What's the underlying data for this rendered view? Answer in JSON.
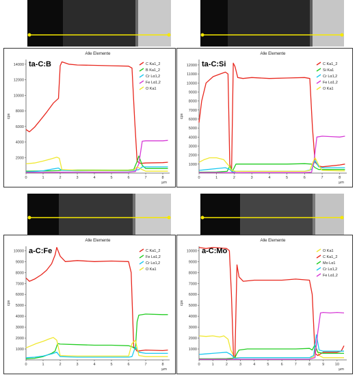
{
  "scan_line_color": "#f5e800",
  "chart_data": [
    {
      "type": "line",
      "title": "Alle Elemente",
      "label": "ta-C:B",
      "ylabel": "cps",
      "xunit": "µm",
      "xlim": [
        0,
        8.4
      ],
      "ylim": [
        0,
        14600
      ],
      "xticks": [
        0,
        1,
        2,
        3,
        4,
        5,
        6,
        7,
        8
      ],
      "yticks": [
        2000,
        4000,
        6000,
        8000,
        10000,
        12000,
        14000
      ],
      "legend_position": "top-right",
      "series": [
        {
          "name": "C Ka1_2",
          "color": "#e8261d",
          "x": [
            0,
            0.2,
            0.5,
            0.8,
            1.2,
            1.6,
            1.9,
            2.0,
            2.1,
            2.5,
            3.0,
            4.0,
            5.0,
            6.0,
            6.2,
            6.35,
            6.5,
            6.7,
            7.0,
            8.0,
            8.3
          ],
          "y": [
            5600,
            5300,
            5900,
            6700,
            7800,
            9000,
            9600,
            13800,
            14300,
            14000,
            13900,
            13850,
            13800,
            13750,
            13500,
            7000,
            1500,
            1250,
            1300,
            1350,
            1400
          ]
        },
        {
          "name": "B Ka1_2",
          "color": "#22cc22",
          "x": [
            0,
            0.5,
            1.0,
            1.5,
            1.9,
            2.1,
            3.0,
            4.0,
            5.0,
            6.0,
            6.3,
            6.5,
            6.6,
            6.8,
            7.0,
            8.0,
            8.3
          ],
          "y": [
            250,
            260,
            280,
            300,
            320,
            380,
            400,
            400,
            390,
            400,
            450,
            1500,
            2200,
            1000,
            600,
            600,
            600
          ]
        },
        {
          "name": "Cr Lα1,2",
          "color": "#19c8f0",
          "x": [
            0,
            0.5,
            1.0,
            1.5,
            1.9,
            2.1,
            3.0,
            4.0,
            5.0,
            6.0,
            6.3,
            6.6,
            6.8,
            7.0,
            8.0,
            8.3
          ],
          "y": [
            150,
            200,
            300,
            500,
            650,
            350,
            300,
            320,
            310,
            300,
            320,
            450,
            800,
            800,
            800,
            800
          ]
        },
        {
          "name": "Fe Lα1,2",
          "color": "#d63ad6",
          "x": [
            0,
            1.0,
            2.0,
            3.0,
            4.0,
            5.0,
            6.0,
            6.4,
            6.6,
            6.8,
            7.0,
            8.0,
            8.3
          ],
          "y": [
            100,
            100,
            110,
            120,
            110,
            120,
            130,
            200,
            1200,
            4100,
            4150,
            4150,
            4200
          ]
        },
        {
          "name": "O Ka1",
          "color": "#f0e830",
          "x": [
            0,
            0.5,
            1.0,
            1.5,
            1.8,
            1.95,
            2.1,
            3.0,
            4.0,
            5.0,
            6.0,
            6.3,
            6.5,
            6.8,
            7.0,
            8.0,
            8.3
          ],
          "y": [
            1200,
            1300,
            1550,
            1850,
            2050,
            1900,
            450,
            350,
            350,
            340,
            350,
            400,
            800,
            450,
            250,
            250,
            250
          ]
        }
      ]
    },
    {
      "type": "line",
      "title": "Alle Elemente",
      "label": "ta-C:Si",
      "ylabel": "cps",
      "xunit": "µm",
      "xlim": [
        0,
        8.4
      ],
      "ylim": [
        0,
        12600
      ],
      "xticks": [
        0,
        1,
        2,
        3,
        4,
        5,
        6,
        7,
        8
      ],
      "yticks": [
        1000,
        2000,
        3000,
        4000,
        5000,
        6000,
        7000,
        8000,
        9000,
        10000,
        11000,
        12000
      ],
      "legend_position": "top-right",
      "series": [
        {
          "name": "C Ka1_2",
          "color": "#e8261d",
          "x": [
            0,
            0.15,
            0.4,
            0.8,
            1.2,
            1.5,
            1.65,
            1.75,
            1.85,
            1.95,
            2.05,
            2.2,
            2.5,
            3.0,
            4.0,
            5.0,
            6.0,
            6.3,
            6.45,
            6.6,
            6.8,
            7.0,
            8.0,
            8.3
          ],
          "y": [
            5600,
            8000,
            10000,
            10700,
            11000,
            11200,
            11000,
            1000,
            200,
            12200,
            11800,
            10600,
            10500,
            10600,
            10500,
            10550,
            10600,
            10500,
            5000,
            1200,
            800,
            700,
            900,
            1000
          ]
        },
        {
          "name": "Si Ka1",
          "color": "#22cc22",
          "x": [
            0,
            1.0,
            1.6,
            1.75,
            1.9,
            2.1,
            3.0,
            4.0,
            5.0,
            6.0,
            6.4,
            6.6,
            6.8,
            7.0,
            8.0,
            8.3
          ],
          "y": [
            100,
            120,
            200,
            800,
            200,
            1000,
            1000,
            1000,
            1000,
            1050,
            1000,
            600,
            400,
            400,
            400,
            400
          ]
        },
        {
          "name": "Cr Lα1,2",
          "color": "#19c8f0",
          "x": [
            0,
            0.5,
            1.0,
            1.5,
            1.75,
            1.9,
            2.1,
            3.0,
            4.0,
            5.0,
            6.0,
            6.4,
            6.6,
            6.8,
            7.0,
            8.0,
            8.3
          ],
          "y": [
            300,
            400,
            500,
            600,
            400,
            100,
            200,
            200,
            200,
            200,
            200,
            400,
            1400,
            700,
            600,
            600,
            600
          ]
        },
        {
          "name": "Fe Lα1,2",
          "color": "#d63ad6",
          "x": [
            0,
            1.0,
            2.0,
            3.0,
            4.0,
            5.0,
            6.0,
            6.4,
            6.55,
            6.7,
            7.0,
            7.5,
            8.0,
            8.3
          ],
          "y": [
            50,
            50,
            50,
            60,
            60,
            60,
            60,
            100,
            1500,
            4000,
            4100,
            4050,
            4000,
            4100
          ]
        },
        {
          "name": "O Ka1",
          "color": "#f0e830",
          "x": [
            0,
            0.3,
            0.6,
            1.0,
            1.4,
            1.7,
            1.85,
            2.1,
            3.0,
            4.0,
            5.0,
            6.0,
            6.3,
            6.5,
            6.6,
            6.8,
            7.0,
            8.0,
            8.3
          ],
          "y": [
            1200,
            1500,
            1700,
            1700,
            1500,
            800,
            300,
            200,
            200,
            200,
            200,
            200,
            300,
            1300,
            1700,
            900,
            300,
            250,
            250
          ]
        }
      ]
    },
    {
      "type": "line",
      "title": "Alle Elemente",
      "label": "a-C:Fe",
      "ylabel": "cps",
      "xunit": "µm",
      "xlim": [
        0,
        8.4
      ],
      "ylim": [
        0,
        10400
      ],
      "xticks": [
        0,
        1,
        2,
        3,
        4,
        5,
        6,
        7,
        8
      ],
      "yticks": [
        1000,
        2000,
        3000,
        4000,
        5000,
        6000,
        7000,
        8000,
        9000,
        10000
      ],
      "legend_position": "top-right",
      "series": [
        {
          "name": "C Ka1_2",
          "color": "#e8261d",
          "x": [
            0,
            0.2,
            0.5,
            0.9,
            1.2,
            1.5,
            1.7,
            1.8,
            2.0,
            2.3,
            3.0,
            4.0,
            5.0,
            6.0,
            6.15,
            6.3,
            6.5,
            7.0,
            8.0,
            8.3
          ],
          "y": [
            7500,
            7200,
            7400,
            7800,
            8200,
            8800,
            9600,
            10300,
            9500,
            9000,
            9100,
            9000,
            9050,
            9000,
            8000,
            1200,
            800,
            900,
            850,
            900
          ]
        },
        {
          "name": "Fe Lα1,2",
          "color": "#22cc22",
          "x": [
            0,
            0.5,
            1.0,
            1.5,
            1.7,
            1.85,
            2.0,
            3.0,
            4.0,
            5.0,
            6.0,
            6.2,
            6.4,
            6.5,
            6.6,
            7.0,
            8.0,
            8.3
          ],
          "y": [
            100,
            150,
            300,
            600,
            800,
            1500,
            1450,
            1400,
            1350,
            1350,
            1300,
            1200,
            1000,
            3500,
            4100,
            4200,
            4150,
            4150
          ]
        },
        {
          "name": "Cr Lα1,2",
          "color": "#19c8f0",
          "x": [
            0,
            0.5,
            1.0,
            1.5,
            1.8,
            2.0,
            3.0,
            4.0,
            5.0,
            6.0,
            6.2,
            6.4,
            6.6,
            7.0,
            8.0,
            8.3
          ],
          "y": [
            200,
            250,
            350,
            550,
            700,
            300,
            250,
            250,
            250,
            250,
            300,
            1200,
            700,
            600,
            600,
            600
          ]
        },
        {
          "name": "O Ka1",
          "color": "#f0e830",
          "x": [
            0,
            0.3,
            0.6,
            1.0,
            1.4,
            1.6,
            1.8,
            2.0,
            3.0,
            4.0,
            5.0,
            6.0,
            6.2,
            6.4,
            6.6,
            7.0,
            8.0,
            8.3
          ],
          "y": [
            1100,
            1300,
            1500,
            1700,
            1950,
            2050,
            1800,
            400,
            350,
            350,
            350,
            350,
            1500,
            1800,
            400,
            300,
            300,
            300
          ]
        }
      ]
    },
    {
      "type": "line",
      "title": "Alle Elemente",
      "label": "a-C:Mo",
      "ylabel": "cps",
      "xunit": "µm",
      "xlim": [
        0,
        10.7
      ],
      "ylim": [
        0,
        10400
      ],
      "xticks": [
        0,
        1,
        2,
        3,
        4,
        5,
        6,
        7,
        8,
        9,
        10
      ],
      "yticks": [
        1000,
        2000,
        3000,
        4000,
        5000,
        6000,
        7000,
        8000,
        9000,
        10000
      ],
      "legend_position": "top-right",
      "series": [
        {
          "name": "O Ka1",
          "color": "#f0e830",
          "x": [
            0,
            0.5,
            1.0,
            1.5,
            1.8,
            2.1,
            2.3,
            2.6,
            3.0,
            4.0,
            5.0,
            6.0,
            7.0,
            8.0,
            8.3,
            8.5,
            8.7,
            9.0,
            10.0,
            10.5
          ],
          "y": [
            2200,
            2150,
            2200,
            2100,
            2200,
            1900,
            900,
            200,
            200,
            200,
            200,
            200,
            200,
            200,
            250,
            1000,
            400,
            200,
            200,
            200
          ]
        },
        {
          "name": "C Ka1_2",
          "color": "#e8261d",
          "x": [
            0,
            0.5,
            1.0,
            1.5,
            2.0,
            2.2,
            2.35,
            2.5,
            2.6,
            2.75,
            2.9,
            3.2,
            4.0,
            5.0,
            6.0,
            7.0,
            8.0,
            8.2,
            8.4,
            8.6,
            9.0,
            10.0,
            10.3,
            10.5
          ],
          "y": [
            10300,
            10200,
            10300,
            10250,
            10200,
            10000,
            6000,
            200,
            200,
            8700,
            7600,
            7200,
            7300,
            7300,
            7300,
            7400,
            7300,
            6000,
            600,
            400,
            700,
            700,
            800,
            1300
          ]
        },
        {
          "name": "Mo Lα1",
          "color": "#22cc22",
          "x": [
            0,
            1.0,
            2.0,
            2.4,
            2.6,
            2.75,
            2.9,
            3.5,
            4.0,
            5.0,
            6.0,
            7.0,
            8.0,
            8.2,
            8.4,
            8.6,
            9.0,
            10.0,
            10.5
          ],
          "y": [
            100,
            100,
            120,
            150,
            200,
            600,
            900,
            1000,
            1000,
            1000,
            1000,
            1000,
            1050,
            900,
            1400,
            700,
            600,
            600,
            600
          ]
        },
        {
          "name": "Cr Lα1,2",
          "color": "#19c8f0",
          "x": [
            0,
            0.5,
            1.0,
            1.5,
            2.0,
            2.3,
            2.6,
            3.0,
            4.0,
            5.0,
            6.0,
            7.0,
            8.0,
            8.3,
            8.5,
            8.7,
            9.0,
            10.0,
            10.5
          ],
          "y": [
            500,
            550,
            600,
            650,
            700,
            500,
            150,
            200,
            200,
            200,
            200,
            200,
            200,
            400,
            2300,
            900,
            800,
            800,
            800
          ]
        },
        {
          "name": "Fe Lα1,2",
          "color": "#d63ad6",
          "x": [
            0,
            1.0,
            2.0,
            3.0,
            4.0,
            5.0,
            6.0,
            7.0,
            8.0,
            8.4,
            8.6,
            8.8,
            9.0,
            9.5,
            10.0,
            10.5
          ],
          "y": [
            50,
            50,
            60,
            60,
            60,
            60,
            60,
            60,
            70,
            200,
            2500,
            4300,
            4350,
            4300,
            4350,
            4300
          ]
        }
      ]
    }
  ]
}
